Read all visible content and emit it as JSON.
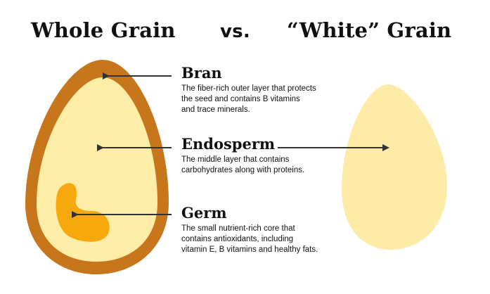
{
  "header": {
    "left_title": "Whole Grain",
    "vs": "vs.",
    "right_title": "“White” Grain"
  },
  "labels": {
    "bran": {
      "heading": "Bran",
      "desc_lines": [
        "The fiber-rich outer layer that protects",
        "the seed and contains B vitamins",
        "and trace minerals."
      ]
    },
    "endosperm": {
      "heading": "Endosperm",
      "desc_lines": [
        "The middle layer that contains",
        "carbohydrates along with proteins."
      ]
    },
    "germ": {
      "heading": "Germ",
      "desc_lines": [
        "The small nutrient-rich core that",
        "contains antioxidants, including",
        "vitamin E, B vitamins and healthy fats."
      ]
    }
  },
  "colors": {
    "bran": "#C7761C",
    "endosperm": "#FDEDA6",
    "germ": "#F7A80D",
    "white_grain": "#FDEBA7",
    "arrow": "#333333"
  }
}
